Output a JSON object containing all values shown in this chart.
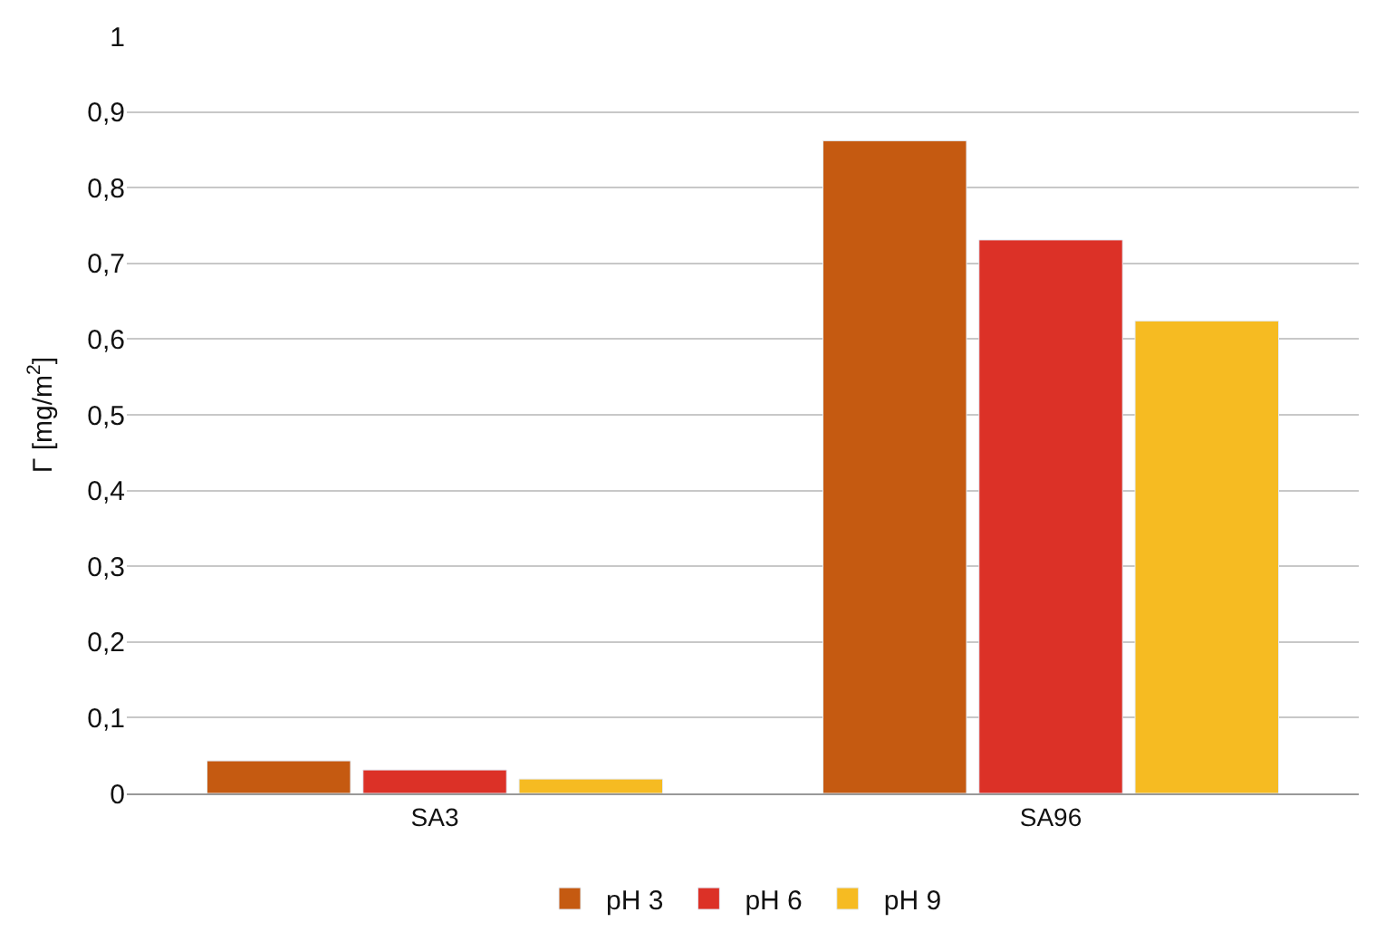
{
  "chart_data": {
    "type": "bar",
    "ylabel": "Γ [mg/m$^{2}$]",
    "categories": [
      "SA3",
      "SA96"
    ],
    "series": [
      {
        "name": "pH 3",
        "color": "#c55a11",
        "values": [
          0.043,
          0.862
        ]
      },
      {
        "name": "pH 6",
        "color": "#dc3127",
        "values": [
          0.031,
          0.731
        ]
      },
      {
        "name": "pH 9",
        "color": "#f6bb22",
        "values": [
          0.019,
          0.624
        ]
      }
    ],
    "ylim": [
      0,
      1
    ],
    "yticks": [
      0,
      {
        "value": 0.1,
        "label": "0,1"
      },
      {
        "value": 0.2,
        "label": "0,2"
      },
      {
        "value": 0.3,
        "label": "0,3"
      },
      {
        "value": 0.4,
        "label": "0,4"
      },
      {
        "value": 0.5,
        "label": "0,5"
      },
      {
        "value": 0.6,
        "label": "0,6"
      },
      {
        "value": 0.7,
        "label": "0,7"
      },
      {
        "value": 0.8,
        "label": "0,8"
      },
      {
        "value": 0.9,
        "label": "0,9"
      },
      1
    ],
    "grid": "y",
    "legend": "bottom"
  }
}
